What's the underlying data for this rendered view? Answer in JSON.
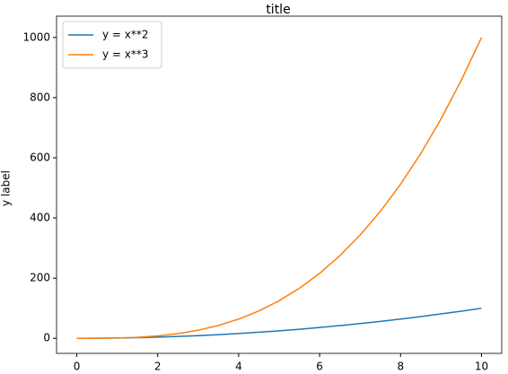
{
  "chart_data": {
    "type": "line",
    "title": "title",
    "y_label": "y label",
    "x": [
      0,
      0.5,
      1,
      1.5,
      2,
      2.5,
      3,
      3.5,
      4,
      4.5,
      5,
      5.5,
      6,
      6.5,
      7,
      7.5,
      8,
      8.5,
      9,
      9.5,
      10
    ],
    "series": [
      {
        "name": "y = x**2",
        "color": "#1f77b4",
        "values": [
          0,
          0.25,
          1,
          2.25,
          4,
          6.25,
          9,
          12.25,
          16,
          20.25,
          25,
          30.25,
          36,
          42.25,
          49,
          56.25,
          64,
          72.25,
          81,
          90.25,
          100
        ]
      },
      {
        "name": "y = x**3",
        "color": "#ff7f0e",
        "values": [
          0,
          0.125,
          1,
          3.375,
          8,
          15.625,
          27,
          42.875,
          64,
          91.125,
          125,
          166.375,
          216,
          274.625,
          343,
          421.875,
          512,
          614.125,
          729,
          857.375,
          1000
        ]
      }
    ],
    "xlim": [
      -0.5,
      10.5
    ],
    "xticks": [
      0,
      2,
      4,
      6,
      8,
      10
    ],
    "ylim": [
      -50,
      1050
    ],
    "yticks": [
      0,
      200,
      400,
      600,
      800,
      1000
    ],
    "grid": false,
    "legend": "upper left"
  }
}
